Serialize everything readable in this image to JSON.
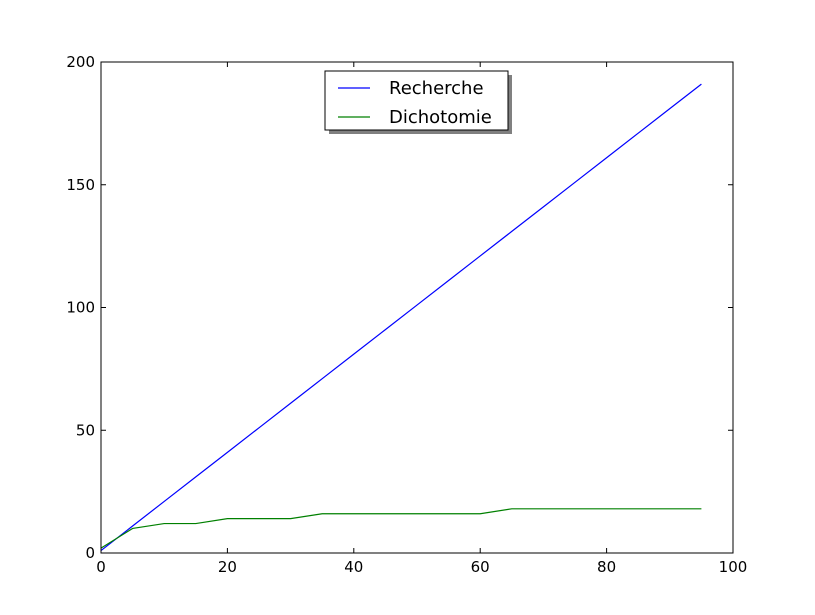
{
  "chart_data": {
    "type": "line",
    "title": "",
    "xlabel": "",
    "ylabel": "",
    "xlim": [
      0,
      100
    ],
    "ylim": [
      0,
      200
    ],
    "xticks": [
      0,
      20,
      40,
      60,
      80,
      100
    ],
    "yticks": [
      0,
      50,
      100,
      150,
      200
    ],
    "xtick_labels": [
      "0",
      "20",
      "40",
      "60",
      "80",
      "100"
    ],
    "ytick_labels": [
      "0",
      "50",
      "100",
      "150",
      "200"
    ],
    "grid": false,
    "legend_position": "top-center",
    "series": [
      {
        "name": "Recherche",
        "color": "#0000ff",
        "x": [
          0,
          5,
          10,
          15,
          20,
          25,
          30,
          35,
          40,
          45,
          50,
          55,
          60,
          65,
          70,
          75,
          80,
          85,
          90,
          95
        ],
        "y": [
          1,
          11,
          21,
          31,
          41,
          51,
          61,
          71,
          81,
          91,
          101,
          111,
          121,
          131,
          141,
          151,
          161,
          171,
          181,
          191
        ]
      },
      {
        "name": "Dichotomie",
        "color": "#008000",
        "x": [
          0,
          5,
          10,
          15,
          20,
          25,
          30,
          35,
          40,
          45,
          50,
          55,
          60,
          65,
          70,
          75,
          80,
          85,
          90,
          95
        ],
        "y": [
          2,
          10,
          12,
          12,
          14,
          14,
          14,
          16,
          16,
          16,
          16,
          16,
          16,
          18,
          18,
          18,
          18,
          18,
          18,
          18
        ]
      }
    ]
  }
}
